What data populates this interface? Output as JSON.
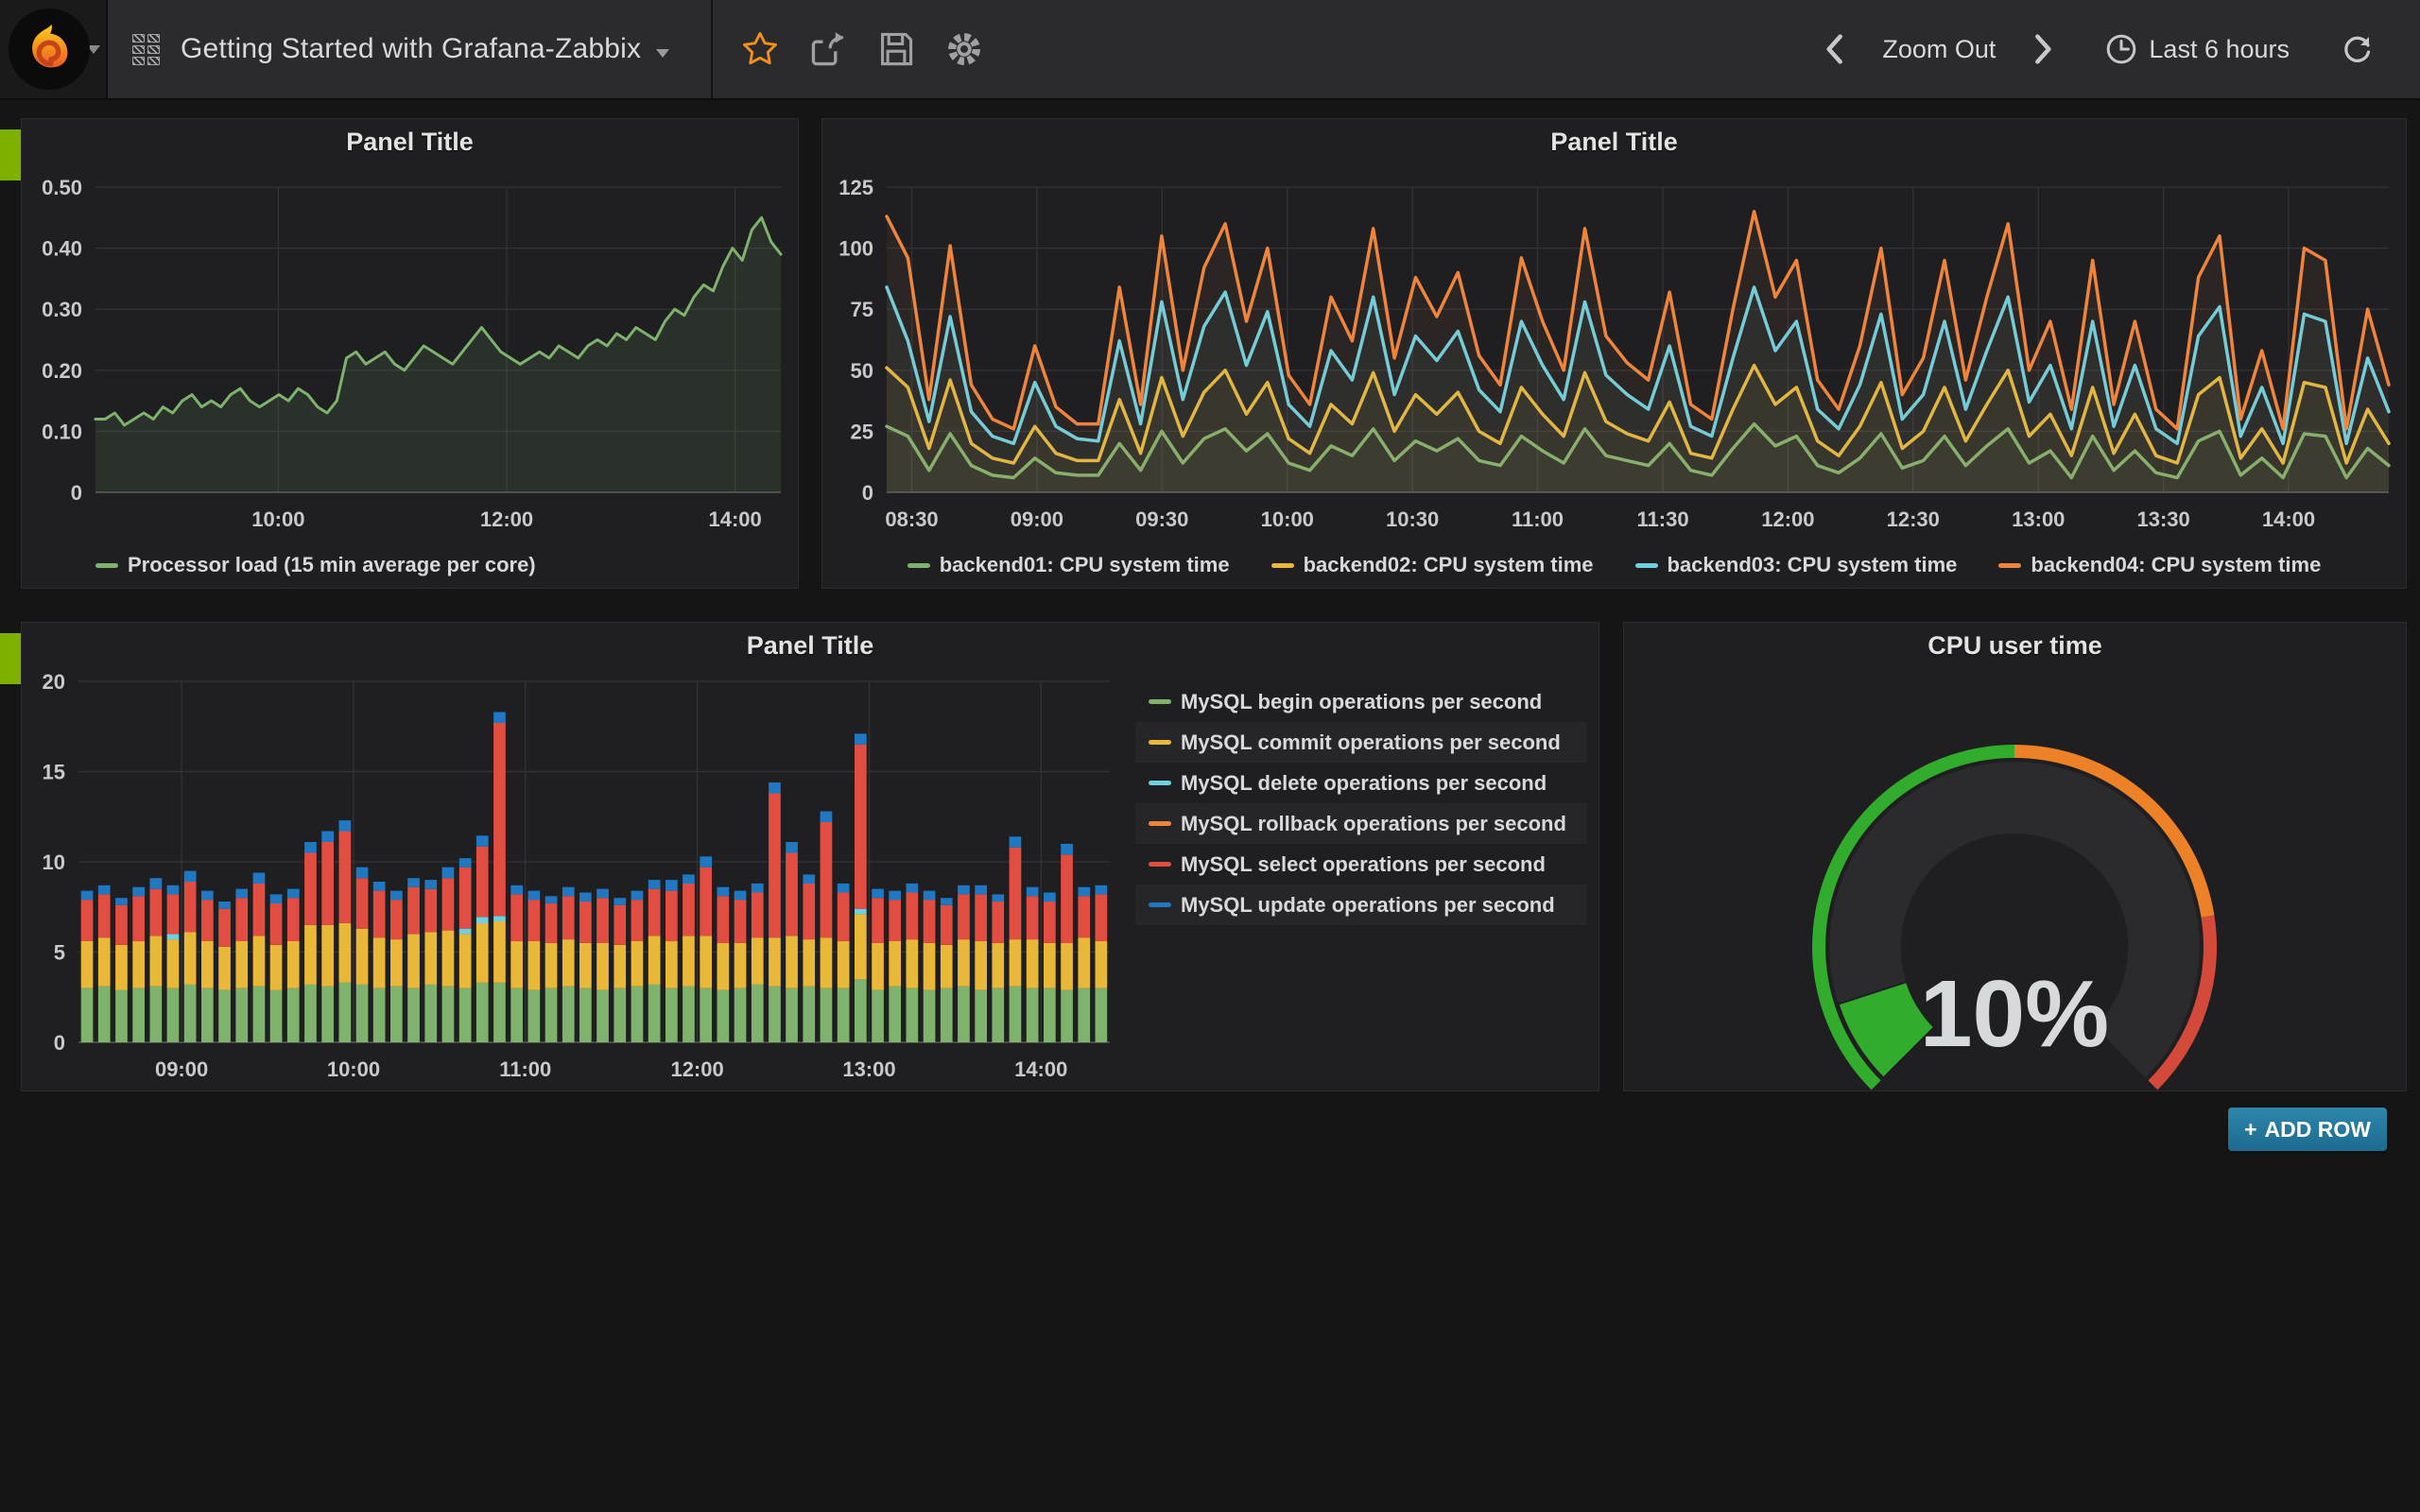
{
  "header": {
    "dashboard_title": "Getting Started with Grafana-Zabbix",
    "zoom_out_label": "Zoom Out",
    "time_range_label": "Last 6 hours",
    "icons": [
      "grafana-logo",
      "dashboard-grid",
      "star",
      "share",
      "save",
      "settings",
      "chevron-left",
      "chevron-right",
      "clock",
      "refresh"
    ]
  },
  "add_row": {
    "plus": "+",
    "label": "ADD ROW"
  },
  "colors": {
    "green": "#7EB26D",
    "yellow": "#EAB839",
    "cyan": "#6ED0E0",
    "orange": "#EF843C",
    "red": "#E24D42",
    "blue": "#1F78C1",
    "gauge_green": "#32AC2D",
    "gauge_orange": "#ED8128",
    "gauge_red": "#D44A3A",
    "row_handle": "#7EB000",
    "add_row_bg": "#1F6E93"
  },
  "chart_data": [
    {
      "type": "line",
      "title": "Panel Title",
      "ylim": [
        0,
        0.5
      ],
      "x_range": [
        "08:24",
        "14:24"
      ],
      "grid": true,
      "legend_position": "bottom-left",
      "y_ticks": [
        {
          "v": 0,
          "label": "0"
        },
        {
          "v": 0.1,
          "label": "0.10"
        },
        {
          "v": 0.2,
          "label": "0.20"
        },
        {
          "v": 0.3,
          "label": "0.30"
        },
        {
          "v": 0.4,
          "label": "0.40"
        },
        {
          "v": 0.5,
          "label": "0.50"
        }
      ],
      "x_ticks": [
        {
          "label": "10:00",
          "pos": 0.2667
        },
        {
          "label": "12:00",
          "pos": 0.6
        },
        {
          "label": "14:00",
          "pos": 0.9333
        }
      ],
      "series": [
        {
          "name": "Processor load (15 min average per core)",
          "color": "#7EB26D",
          "fill_opacity": 0.12,
          "width": 3,
          "values": [
            0.12,
            0.12,
            0.13,
            0.11,
            0.12,
            0.13,
            0.12,
            0.14,
            0.13,
            0.15,
            0.16,
            0.14,
            0.15,
            0.14,
            0.16,
            0.17,
            0.15,
            0.14,
            0.15,
            0.16,
            0.15,
            0.17,
            0.16,
            0.14,
            0.13,
            0.15,
            0.22,
            0.23,
            0.21,
            0.22,
            0.23,
            0.21,
            0.2,
            0.22,
            0.24,
            0.23,
            0.22,
            0.21,
            0.23,
            0.25,
            0.27,
            0.25,
            0.23,
            0.22,
            0.21,
            0.22,
            0.23,
            0.22,
            0.24,
            0.23,
            0.22,
            0.24,
            0.25,
            0.24,
            0.26,
            0.25,
            0.27,
            0.26,
            0.25,
            0.28,
            0.3,
            0.29,
            0.32,
            0.34,
            0.33,
            0.37,
            0.4,
            0.38,
            0.43,
            0.45,
            0.41,
            0.39
          ]
        }
      ]
    },
    {
      "type": "line",
      "title": "Panel Title",
      "ylim": [
        0,
        125
      ],
      "x_range": [
        "08:24",
        "14:24"
      ],
      "grid": true,
      "legend_position": "bottom-center",
      "y_ticks": [
        {
          "v": 0,
          "label": "0"
        },
        {
          "v": 25,
          "label": "25"
        },
        {
          "v": 50,
          "label": "50"
        },
        {
          "v": 75,
          "label": "75"
        },
        {
          "v": 100,
          "label": "100"
        },
        {
          "v": 125,
          "label": "125"
        }
      ],
      "x_ticks": [
        {
          "label": "08:30",
          "pos": 0.0167
        },
        {
          "label": "09:00",
          "pos": 0.1
        },
        {
          "label": "09:30",
          "pos": 0.1833
        },
        {
          "label": "10:00",
          "pos": 0.2667
        },
        {
          "label": "10:30",
          "pos": 0.35
        },
        {
          "label": "11:00",
          "pos": 0.4333
        },
        {
          "label": "11:30",
          "pos": 0.5167
        },
        {
          "label": "12:00",
          "pos": 0.6
        },
        {
          "label": "12:30",
          "pos": 0.6833
        },
        {
          "label": "13:00",
          "pos": 0.7667
        },
        {
          "label": "13:30",
          "pos": 0.85
        },
        {
          "label": "14:00",
          "pos": 0.9333
        }
      ],
      "series": [
        {
          "name": "backend01: CPU system time",
          "color": "#7EB26D",
          "fill_opacity": 0.06,
          "width": 3.5,
          "values": [
            27,
            23,
            9,
            24,
            11,
            7,
            6,
            14,
            8,
            7,
            7,
            20,
            9,
            25,
            12,
            22,
            26,
            17,
            24,
            12,
            9,
            19,
            15,
            26,
            13,
            21,
            17,
            22,
            13,
            11,
            23,
            17,
            12,
            26,
            15,
            13,
            11,
            20,
            9,
            7,
            18,
            28,
            19,
            23,
            11,
            8,
            14,
            24,
            10,
            13,
            23,
            11,
            19,
            26,
            12,
            17,
            6,
            23,
            9,
            17,
            8,
            6,
            21,
            25,
            7,
            14,
            6,
            24,
            23,
            6,
            18,
            11
          ]
        },
        {
          "name": "backend02: CPU system time",
          "color": "#EAB839",
          "fill_opacity": 0.06,
          "width": 3.5,
          "values": [
            51,
            43,
            18,
            46,
            20,
            14,
            12,
            27,
            16,
            13,
            13,
            38,
            16,
            47,
            23,
            41,
            50,
            32,
            45,
            22,
            16,
            36,
            28,
            49,
            25,
            40,
            32,
            41,
            25,
            20,
            43,
            32,
            23,
            49,
            29,
            24,
            21,
            37,
            16,
            14,
            34,
            52,
            36,
            43,
            21,
            15,
            27,
            45,
            18,
            25,
            43,
            21,
            36,
            50,
            23,
            32,
            15,
            43,
            16,
            32,
            15,
            12,
            40,
            47,
            14,
            26,
            12,
            45,
            43,
            12,
            34,
            20
          ]
        },
        {
          "name": "backend03: CPU system time",
          "color": "#6ED0E0",
          "fill_opacity": 0.06,
          "width": 3.5,
          "values": [
            84,
            62,
            29,
            72,
            33,
            23,
            20,
            45,
            27,
            22,
            21,
            62,
            28,
            78,
            38,
            68,
            82,
            52,
            74,
            36,
            27,
            58,
            46,
            80,
            40,
            64,
            54,
            66,
            42,
            33,
            70,
            52,
            38,
            78,
            48,
            40,
            34,
            60,
            27,
            23,
            55,
            84,
            58,
            70,
            34,
            26,
            44,
            73,
            30,
            40,
            70,
            34,
            58,
            80,
            37,
            52,
            26,
            70,
            27,
            52,
            26,
            20,
            64,
            76,
            23,
            43,
            20,
            73,
            70,
            20,
            55,
            33
          ]
        },
        {
          "name": "backend04: CPU system time",
          "color": "#EF843C",
          "fill_opacity": 0.06,
          "width": 3.5,
          "values": [
            113,
            96,
            38,
            101,
            44,
            30,
            26,
            60,
            35,
            28,
            28,
            84,
            36,
            105,
            50,
            92,
            110,
            70,
            100,
            48,
            36,
            80,
            62,
            108,
            55,
            88,
            72,
            90,
            56,
            44,
            96,
            70,
            50,
            108,
            64,
            53,
            46,
            82,
            36,
            30,
            75,
            115,
            80,
            95,
            46,
            34,
            60,
            100,
            40,
            55,
            95,
            46,
            80,
            110,
            50,
            70,
            34,
            95,
            36,
            70,
            34,
            26,
            88,
            105,
            30,
            58,
            26,
            100,
            95,
            26,
            75,
            44
          ]
        }
      ]
    },
    {
      "type": "bar-stacked",
      "title": "Panel Title",
      "ylim": [
        0,
        20
      ],
      "x_range": [
        "08:24",
        "14:24"
      ],
      "grid": true,
      "legend_position": "right",
      "y_ticks": [
        {
          "v": 0,
          "label": "0"
        },
        {
          "v": 5,
          "label": "5"
        },
        {
          "v": 10,
          "label": "10"
        },
        {
          "v": 15,
          "label": "15"
        },
        {
          "v": 20,
          "label": "20"
        }
      ],
      "x_ticks": [
        {
          "label": "09:00",
          "pos": 0.1
        },
        {
          "label": "10:00",
          "pos": 0.2667
        },
        {
          "label": "11:00",
          "pos": 0.4333
        },
        {
          "label": "12:00",
          "pos": 0.6
        },
        {
          "label": "13:00",
          "pos": 0.7667
        },
        {
          "label": "14:00",
          "pos": 0.9333
        }
      ],
      "series": [
        {
          "name": "MySQL begin operations per second",
          "color": "#7EB26D",
          "values": [
            3.0,
            3.1,
            2.9,
            3.0,
            3.1,
            3.0,
            3.2,
            3.0,
            2.9,
            3.0,
            3.1,
            2.9,
            3.0,
            3.2,
            3.1,
            3.3,
            3.2,
            3.0,
            3.1,
            3.0,
            3.2,
            3.1,
            3.0,
            3.3,
            3.3,
            3.0,
            2.9,
            3.0,
            3.1,
            3.0,
            2.9,
            3.0,
            3.1,
            3.2,
            3.0,
            3.1,
            3.0,
            2.9,
            3.0,
            3.2,
            3.1,
            3.0,
            3.1,
            3.0,
            3.0,
            3.5,
            2.9,
            3.1,
            3.0,
            2.9,
            3.0,
            3.1,
            2.9,
            3.0,
            3.1,
            3.0,
            3.0,
            2.9,
            3.0,
            3.0
          ]
        },
        {
          "name": "MySQL commit operations per second",
          "color": "#EAB839",
          "values": [
            2.6,
            2.7,
            2.5,
            2.6,
            2.8,
            2.7,
            2.9,
            2.6,
            2.4,
            2.6,
            2.8,
            2.5,
            2.6,
            3.3,
            3.4,
            3.3,
            3.1,
            2.8,
            2.6,
            3.0,
            2.9,
            3.1,
            3.0,
            3.3,
            3.4,
            2.6,
            2.7,
            2.5,
            2.6,
            2.5,
            2.6,
            2.4,
            2.5,
            2.7,
            2.6,
            2.8,
            2.9,
            2.6,
            2.5,
            2.6,
            2.7,
            2.9,
            2.6,
            2.8,
            2.6,
            3.6,
            2.6,
            2.5,
            2.7,
            2.6,
            2.4,
            2.6,
            2.7,
            2.5,
            2.6,
            2.7,
            2.5,
            2.6,
            2.8,
            2.6
          ]
        },
        {
          "name": "MySQL delete operations per second",
          "color": "#6ED0E0",
          "values": [
            0,
            0,
            0,
            0,
            0,
            0.3,
            0,
            0,
            0,
            0,
            0,
            0,
            0,
            0,
            0,
            0,
            0,
            0,
            0,
            0,
            0,
            0,
            0.3,
            0.35,
            0.3,
            0,
            0,
            0,
            0,
            0,
            0,
            0,
            0,
            0,
            0,
            0,
            0,
            0,
            0,
            0,
            0,
            0,
            0,
            0,
            0,
            0.3,
            0,
            0,
            0,
            0,
            0,
            0,
            0,
            0,
            0,
            0,
            0,
            0,
            0,
            0
          ]
        },
        {
          "name": "MySQL rollback operations per second",
          "color": "#EF843C",
          "values": [
            0,
            0,
            0,
            0,
            0,
            0,
            0,
            0,
            0,
            0,
            0,
            0,
            0,
            0,
            0,
            0,
            0,
            0,
            0,
            0,
            0,
            0,
            0,
            0,
            0,
            0,
            0,
            0,
            0,
            0,
            0,
            0,
            0,
            0,
            0,
            0,
            0,
            0,
            0,
            0,
            0,
            0,
            0,
            0,
            0,
            0,
            0,
            0,
            0,
            0,
            0,
            0,
            0,
            0,
            0,
            0,
            0,
            0,
            0,
            0
          ]
        },
        {
          "name": "MySQL select operations per second",
          "color": "#E24D42",
          "values": [
            2.3,
            2.4,
            2.2,
            2.5,
            2.6,
            2.2,
            2.8,
            2.3,
            2.1,
            2.4,
            2.9,
            2.3,
            2.4,
            4.0,
            4.6,
            5.1,
            2.8,
            2.6,
            2.2,
            2.6,
            2.4,
            2.9,
            3.4,
            3.9,
            10.7,
            2.6,
            2.3,
            2.2,
            2.4,
            2.3,
            2.5,
            2.2,
            2.3,
            2.6,
            2.8,
            2.9,
            3.8,
            2.6,
            2.4,
            2.5,
            8.0,
            4.6,
            3.1,
            6.4,
            2.7,
            9.1,
            2.5,
            2.3,
            2.6,
            2.4,
            2.2,
            2.5,
            2.6,
            2.3,
            5.1,
            2.4,
            2.3,
            4.9,
            2.3,
            2.6
          ]
        },
        {
          "name": "MySQL update operations per second",
          "color": "#1F78C1",
          "values": [
            0.5,
            0.5,
            0.4,
            0.5,
            0.6,
            0.5,
            0.6,
            0.5,
            0.4,
            0.5,
            0.6,
            0.5,
            0.5,
            0.6,
            0.6,
            0.6,
            0.6,
            0.5,
            0.5,
            0.5,
            0.5,
            0.6,
            0.5,
            0.6,
            0.6,
            0.5,
            0.5,
            0.4,
            0.5,
            0.5,
            0.5,
            0.4,
            0.5,
            0.5,
            0.6,
            0.5,
            0.6,
            0.5,
            0.5,
            0.5,
            0.6,
            0.6,
            0.5,
            0.6,
            0.5,
            0.6,
            0.5,
            0.5,
            0.5,
            0.5,
            0.4,
            0.5,
            0.5,
            0.4,
            0.6,
            0.5,
            0.5,
            0.6,
            0.5,
            0.5
          ]
        }
      ]
    },
    {
      "type": "gauge",
      "title": "CPU user time",
      "value": 10,
      "value_display": "10%",
      "min": 0,
      "max": 100,
      "value_color": "#32AC2D",
      "thresholds": [
        {
          "to": 50,
          "color": "#32AC2D"
        },
        {
          "to": 80,
          "color": "#ED8128"
        },
        {
          "to": 100,
          "color": "#D44A3A"
        }
      ]
    }
  ]
}
